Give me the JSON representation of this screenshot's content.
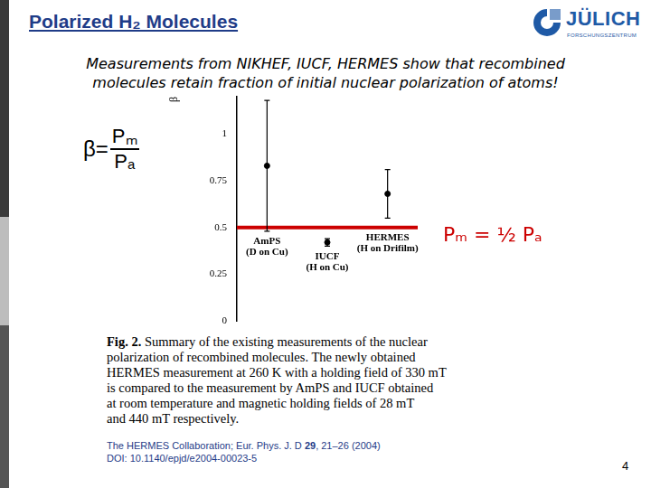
{
  "slide": {
    "title": "Polarized H₂ Molecules",
    "logo": {
      "name": "JÜLICH",
      "sub": "FORSCHUNGSZENTRUM"
    },
    "subtitle_lines": [
      "Measurements from NIKHEF, IUCF, HERMES show that recombined",
      "molecules retain fraction of initial nuclear polarization of atoms!"
    ],
    "formula": {
      "lhs": "β=",
      "numerator": "Pₘ",
      "denominator": "Pₐ"
    },
    "caption": {
      "label": "Fig. 2.",
      "lines": [
        " Summary of the existing measurements of the nuclear",
        "polarization of recombined molecules. The newly obtained",
        "HERMES measurement at 260 K with a holding field of 330 mT",
        "is compared to the measurement by AmPS and IUCF obtained",
        "at room temperature and magnetic holding fields of 28 mT",
        "and 440 mT respectively."
      ]
    },
    "citation": {
      "before": "The HERMES Collaboration; Eur. Phys. J. D ",
      "volume": "29",
      "after": ", 21–26 (2004)",
      "doi": "DOI: 10.1140/epjd/e2004-00023-5"
    },
    "page": "4"
  },
  "chart_data": {
    "type": "scatter",
    "categories": [
      "AmPS (D on Cu)",
      "IUCF (H on Cu)",
      "HERMES (H on Drifilm)"
    ],
    "values": [
      0.83,
      0.42,
      0.68
    ],
    "errors": [
      0.35,
      0.02,
      0.13
    ],
    "color": "#000000",
    "marker": "circle",
    "ylabel": "β",
    "ylim": [
      0,
      1.2
    ],
    "yticks": [
      0,
      0.25,
      0.5,
      0.75,
      1
    ],
    "grid": false,
    "tick_labels": "y",
    "annotations": [
      {
        "text": "Pₘ = ½ Pₐ",
        "y": 0.5,
        "color": "#cc0000"
      }
    ]
  }
}
